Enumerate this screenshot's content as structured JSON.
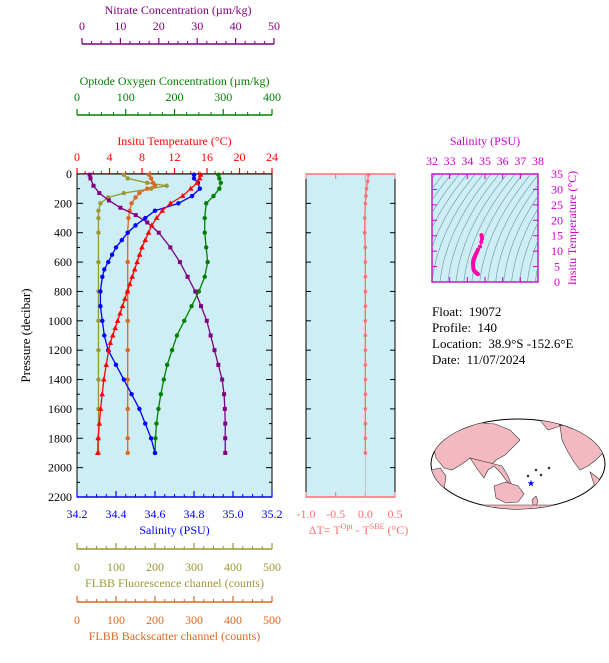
{
  "colors": {
    "plot_bg": "#cdeef5",
    "temperature": "#ff0000",
    "salinity": "#0000ff",
    "oxygen": "#008000",
    "nitrate": "#800080",
    "fluorescence": "#999933",
    "backscatter": "#dd6622",
    "delta_t": "#ff7070",
    "ts_axis": "#cc00cc",
    "ts_contour": "#6e8fa3"
  },
  "axes": {
    "nitrate": {
      "title": "Nitrate Concentration (µm/kg)",
      "ticks": [
        "0",
        "10",
        "20",
        "30",
        "40",
        "50"
      ],
      "range": [
        0,
        50
      ]
    },
    "oxygen": {
      "title": "Optode Oxygen Concentration (µm/kg)",
      "ticks": [
        "0",
        "100",
        "200",
        "300",
        "400"
      ],
      "range": [
        0,
        400
      ]
    },
    "temperature": {
      "title": "Insitu Temperature (°C)",
      "ticks": [
        "0",
        "4",
        "8",
        "12",
        "16",
        "20",
        "24"
      ],
      "range": [
        0,
        24
      ]
    },
    "pressure": {
      "title": "Pressure (decibar)",
      "ticks": [
        "0",
        "200",
        "400",
        "600",
        "800",
        "1000",
        "1200",
        "1400",
        "1600",
        "1800",
        "2000",
        "2200"
      ],
      "range": [
        0,
        2200
      ]
    },
    "salinity": {
      "title": "Salinity (PSU)",
      "ticks": [
        "34.2",
        "34.4",
        "34.6",
        "34.8",
        "35.0",
        "35.2"
      ],
      "range": [
        34.2,
        35.2
      ]
    },
    "fluorescence": {
      "title": "FLBB Fluorescence channel (counts)",
      "ticks": [
        "0",
        "100",
        "200",
        "300",
        "400",
        "500"
      ],
      "range": [
        0,
        500
      ]
    },
    "backscatter": {
      "title": "FLBB Backscatter channel (counts)",
      "ticks": [
        "0",
        "100",
        "200",
        "300",
        "400",
        "500"
      ],
      "range": [
        0,
        500
      ]
    },
    "delta_t": {
      "ticks": [
        "-1.0",
        "-0.5",
        "0.0",
        "0.5"
      ],
      "range": [
        -1.0,
        0.5
      ],
      "label_parts": [
        "ΔT= T",
        "Opt",
        " - T",
        "SBE",
        " (°C)"
      ]
    },
    "ts_salinity": {
      "title": "Salinity (PSU)",
      "ticks": [
        "32",
        "33",
        "34",
        "35",
        "36",
        "37",
        "38"
      ],
      "range": [
        32,
        38
      ]
    },
    "ts_temperature": {
      "title": "Insitu Temperature (°C)",
      "ticks": [
        "0",
        "5",
        "10",
        "15",
        "20",
        "25",
        "30",
        "35"
      ],
      "range": [
        0,
        35
      ]
    }
  },
  "info": {
    "float_label": "Float:",
    "float_value": "19072",
    "profile_label": "Profile:",
    "profile_value": "140",
    "location_label": "Location:",
    "location_value": "38.9°S  -152.6°E",
    "date_label": "Date:",
    "date_value": "11/07/2024"
  },
  "chart_data": [
    {
      "type": "line",
      "name": "profile",
      "y_axis": "Pressure (decibar)",
      "ylim": [
        0,
        2200
      ],
      "grid": false,
      "series": [
        {
          "name": "Insitu Temperature (°C)",
          "color": "#ff0000",
          "points": [
            [
              15.2,
              5
            ],
            [
              15.1,
              30
            ],
            [
              14.8,
              60
            ],
            [
              14.0,
              100
            ],
            [
              13.0,
              150
            ],
            [
              11.5,
              200
            ],
            [
              10.5,
              250
            ],
            [
              9.8,
              300
            ],
            [
              9.2,
              350
            ],
            [
              8.8,
              400
            ],
            [
              8.4,
              450
            ],
            [
              8.0,
              500
            ],
            [
              7.7,
              550
            ],
            [
              7.4,
              600
            ],
            [
              7.1,
              650
            ],
            [
              6.8,
              700
            ],
            [
              6.5,
              750
            ],
            [
              6.2,
              800
            ],
            [
              5.9,
              850
            ],
            [
              5.6,
              900
            ],
            [
              5.3,
              950
            ],
            [
              5.0,
              1000
            ],
            [
              4.7,
              1050
            ],
            [
              4.4,
              1100
            ],
            [
              4.1,
              1150
            ],
            [
              3.9,
              1200
            ],
            [
              3.6,
              1300
            ],
            [
              3.3,
              1400
            ],
            [
              3.1,
              1500
            ],
            [
              2.9,
              1600
            ],
            [
              2.75,
              1700
            ],
            [
              2.6,
              1800
            ],
            [
              2.55,
              1900
            ]
          ]
        },
        {
          "name": "Salinity (PSU)",
          "color": "#0000ff",
          "points": [
            [
              34.8,
              5
            ],
            [
              34.8,
              30
            ],
            [
              34.82,
              60
            ],
            [
              34.83,
              100
            ],
            [
              34.79,
              150
            ],
            [
              34.72,
              200
            ],
            [
              34.6,
              250
            ],
            [
              34.55,
              300
            ],
            [
              34.5,
              350
            ],
            [
              34.46,
              400
            ],
            [
              34.43,
              450
            ],
            [
              34.4,
              500
            ],
            [
              34.38,
              550
            ],
            [
              34.36,
              600
            ],
            [
              34.34,
              650
            ],
            [
              34.33,
              700
            ],
            [
              34.32,
              800
            ],
            [
              34.32,
              900
            ],
            [
              34.33,
              1000
            ],
            [
              34.34,
              1100
            ],
            [
              34.36,
              1200
            ],
            [
              34.4,
              1300
            ],
            [
              34.44,
              1400
            ],
            [
              34.48,
              1500
            ],
            [
              34.52,
              1600
            ],
            [
              34.55,
              1700
            ],
            [
              34.58,
              1800
            ],
            [
              34.6,
              1900
            ]
          ]
        },
        {
          "name": "Optode Oxygen Concentration (µm/kg)",
          "color": "#008000",
          "points": [
            [
              290,
              5
            ],
            [
              292,
              30
            ],
            [
              295,
              60
            ],
            [
              292,
              100
            ],
            [
              280,
              150
            ],
            [
              265,
              200
            ],
            [
              262,
              300
            ],
            [
              262,
              400
            ],
            [
              265,
              500
            ],
            [
              268,
              600
            ],
            [
              262,
              700
            ],
            [
              250,
              800
            ],
            [
              235,
              900
            ],
            [
              220,
              1000
            ],
            [
              205,
              1100
            ],
            [
              195,
              1200
            ],
            [
              185,
              1300
            ],
            [
              178,
              1400
            ],
            [
              172,
              1500
            ],
            [
              167,
              1600
            ],
            [
              163,
              1700
            ],
            [
              161,
              1800
            ],
            [
              160,
              1900
            ]
          ]
        },
        {
          "name": "Nitrate Concentration (µm/kg)",
          "color": "#800080",
          "points": [
            [
              2,
              5
            ],
            [
              2.2,
              30
            ],
            [
              3,
              80
            ],
            [
              4.5,
              130
            ],
            [
              7,
              180
            ],
            [
              10,
              230
            ],
            [
              14,
              280
            ],
            [
              17,
              330
            ],
            [
              20,
              400
            ],
            [
              23,
              500
            ],
            [
              25.5,
              600
            ],
            [
              27.5,
              700
            ],
            [
              29.5,
              800
            ],
            [
              31,
              900
            ],
            [
              32.5,
              1000
            ],
            [
              33.5,
              1100
            ],
            [
              34.5,
              1200
            ],
            [
              35.5,
              1300
            ],
            [
              36.5,
              1400
            ],
            [
              37,
              1500
            ],
            [
              37.2,
              1600
            ],
            [
              37.3,
              1700
            ],
            [
              37.3,
              1800
            ],
            [
              37.3,
              1900
            ]
          ]
        },
        {
          "name": "FLBB Fluorescence channel (counts)",
          "color": "#999933",
          "points": [
            [
              120,
              5
            ],
            [
              130,
              30
            ],
            [
              180,
              60
            ],
            [
              230,
              80
            ],
            [
              190,
              100
            ],
            [
              120,
              130
            ],
            [
              80,
              160
            ],
            [
              60,
              200
            ],
            [
              55,
              250
            ],
            [
              55,
              300
            ],
            [
              55,
              400
            ],
            [
              55,
              600
            ],
            [
              55,
              800
            ],
            [
              55,
              1000
            ],
            [
              55,
              1200
            ],
            [
              55,
              1400
            ],
            [
              55,
              1600
            ],
            [
              55,
              1800
            ],
            [
              55,
              1900
            ]
          ]
        },
        {
          "name": "FLBB Backscatter channel (counts)",
          "color": "#dd6622",
          "points": [
            [
              185,
              5
            ],
            [
              190,
              30
            ],
            [
              195,
              60
            ],
            [
              200,
              80
            ],
            [
              180,
              100
            ],
            [
              160,
              130
            ],
            [
              150,
              160
            ],
            [
              140,
              200
            ],
            [
              135,
              250
            ],
            [
              132,
              300
            ],
            [
              130,
              400
            ],
            [
              130,
              600
            ],
            [
              130,
              800
            ],
            [
              130,
              1000
            ],
            [
              130,
              1200
            ],
            [
              130,
              1400
            ],
            [
              130,
              1600
            ],
            [
              130,
              1800
            ],
            [
              130,
              1900
            ]
          ]
        }
      ]
    },
    {
      "type": "line",
      "name": "delta_t",
      "xlim": [
        -1.0,
        0.5
      ],
      "ylim": [
        0,
        2200
      ],
      "series": [
        {
          "name": "ΔT",
          "color": "#ff7070",
          "points": [
            [
              0.05,
              5
            ],
            [
              0.04,
              50
            ],
            [
              0.02,
              100
            ],
            [
              0.01,
              150
            ],
            [
              0.0,
              200
            ],
            [
              -0.01,
              300
            ],
            [
              -0.01,
              400
            ],
            [
              0.0,
              500
            ],
            [
              0.0,
              600
            ],
            [
              0.0,
              700
            ],
            [
              0.0,
              800
            ],
            [
              0.0,
              900
            ],
            [
              0.0,
              1000
            ],
            [
              0.0,
              1100
            ],
            [
              0.0,
              1200
            ],
            [
              0.0,
              1300
            ],
            [
              0.0,
              1400
            ],
            [
              0.0,
              1500
            ],
            [
              0.0,
              1600
            ],
            [
              0.0,
              1700
            ],
            [
              0.0,
              1800
            ],
            [
              0.0,
              1900
            ]
          ]
        }
      ]
    },
    {
      "type": "scatter",
      "name": "ts_diagram",
      "xlim": [
        32,
        38
      ],
      "ylim": [
        0,
        35
      ],
      "series": [
        {
          "name": "T-S",
          "color": "#ff00aa",
          "points": [
            [
              34.8,
              15.2
            ],
            [
              34.82,
              14.8
            ],
            [
              34.83,
              14.0
            ],
            [
              34.79,
              13.0
            ],
            [
              34.72,
              11.5
            ],
            [
              34.6,
              10.5
            ],
            [
              34.55,
              9.8
            ],
            [
              34.5,
              9.2
            ],
            [
              34.46,
              8.8
            ],
            [
              34.43,
              8.4
            ],
            [
              34.4,
              8.0
            ],
            [
              34.38,
              7.7
            ],
            [
              34.36,
              7.4
            ],
            [
              34.34,
              7.1
            ],
            [
              34.33,
              6.8
            ],
            [
              34.32,
              6.2
            ],
            [
              34.32,
              5.6
            ],
            [
              34.33,
              5.0
            ],
            [
              34.34,
              4.4
            ],
            [
              34.36,
              3.9
            ],
            [
              34.4,
              3.6
            ],
            [
              34.44,
              3.3
            ],
            [
              34.48,
              3.1
            ],
            [
              34.52,
              2.9
            ],
            [
              34.55,
              2.75
            ],
            [
              34.58,
              2.6
            ],
            [
              34.6,
              2.55
            ]
          ]
        }
      ]
    }
  ]
}
